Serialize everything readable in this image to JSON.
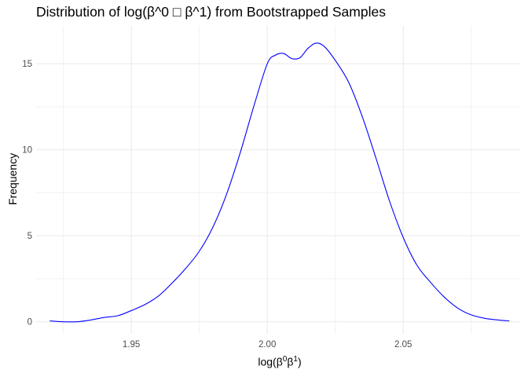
{
  "chart_data": {
    "type": "line",
    "title": "Distribution of log(β^0 □ β^1) from Bootstrapped Samples",
    "xlabel": {
      "text": "log(β",
      "sup1": "0",
      "mid": "β",
      "sup2": "1",
      "close": ")"
    },
    "ylabel": "Frequency",
    "xlim": [
      1.915,
      2.093
    ],
    "ylim": [
      -0.7,
      17.2
    ],
    "x_ticks": [
      1.95,
      2.0,
      2.05
    ],
    "x_tick_labels": [
      "1.95",
      "2.00",
      "2.05"
    ],
    "y_ticks": [
      0,
      5,
      10,
      15
    ],
    "y_tick_labels": [
      "0",
      "5",
      "10",
      "15"
    ],
    "grid": true,
    "line_color": "#0000ff",
    "grid_color": "#ebebeb",
    "series": [
      {
        "x": [
          1.92,
          1.925,
          1.93,
          1.935,
          1.94,
          1.945,
          1.95,
          1.955,
          1.96,
          1.965,
          1.97,
          1.975,
          1.98,
          1.985,
          1.99,
          1.995,
          2.0,
          2.003,
          2.006,
          2.009,
          2.012,
          2.015,
          2.018,
          2.021,
          2.025,
          2.03,
          2.035,
          2.04,
          2.045,
          2.05,
          2.055,
          2.06,
          2.065,
          2.07,
          2.075,
          2.08,
          2.085,
          2.089
        ],
        "y": [
          0.05,
          0.0,
          0.0,
          0.1,
          0.25,
          0.35,
          0.65,
          1.0,
          1.5,
          2.25,
          3.1,
          4.1,
          5.5,
          7.4,
          9.8,
          12.5,
          15.0,
          15.5,
          15.6,
          15.3,
          15.35,
          15.9,
          16.2,
          16.0,
          15.2,
          13.9,
          11.9,
          9.5,
          7.0,
          4.9,
          3.3,
          2.3,
          1.45,
          0.8,
          0.4,
          0.2,
          0.1,
          0.05
        ]
      }
    ]
  }
}
